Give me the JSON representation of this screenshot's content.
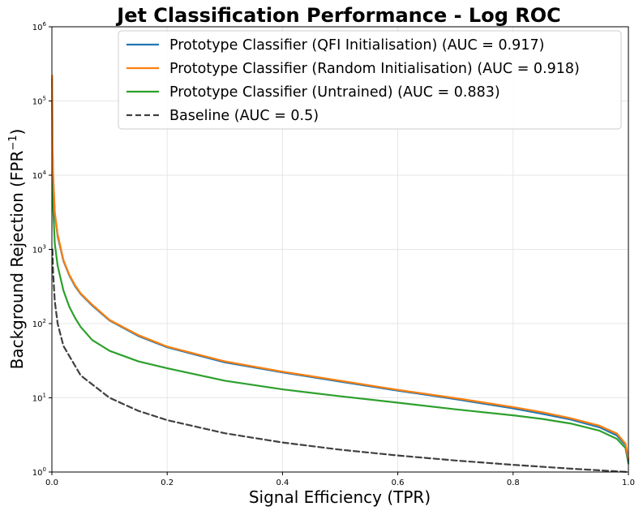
{
  "chart_data": {
    "type": "line",
    "title": "Jet Classification Performance - Log ROC",
    "xlabel": "Signal Efficiency (TPR)",
    "ylabel_base": "Background Rejection (FPR",
    "ylabel_sup": "−1",
    "ylabel_close": ")",
    "xlim": [
      0,
      1
    ],
    "ylim": [
      1,
      1000000
    ],
    "yscale": "log",
    "grid": true,
    "legend_position": "top-right",
    "x_ticks": [
      {
        "value": 0.0,
        "label": "0.0"
      },
      {
        "value": 0.2,
        "label": "0.2"
      },
      {
        "value": 0.4,
        "label": "0.4"
      },
      {
        "value": 0.6,
        "label": "0.6"
      },
      {
        "value": 0.8,
        "label": "0.8"
      },
      {
        "value": 1.0,
        "label": "1.0"
      }
    ],
    "y_ticks": [
      {
        "value": 1,
        "base": "10",
        "exp": "0"
      },
      {
        "value": 10,
        "base": "10",
        "exp": "1"
      },
      {
        "value": 100,
        "base": "10",
        "exp": "2"
      },
      {
        "value": 1000,
        "base": "10",
        "exp": "3"
      },
      {
        "value": 10000,
        "base": "10",
        "exp": "4"
      },
      {
        "value": 100000,
        "base": "10",
        "exp": "5"
      },
      {
        "value": 1000000,
        "base": "10",
        "exp": "6"
      }
    ],
    "series": [
      {
        "name": "Prototype Classifier (QFI Initialisation) (AUC = 0.917)",
        "color": "#1f77b4",
        "dash": "solid",
        "x": [
          0.0005,
          0.001,
          0.002,
          0.005,
          0.01,
          0.02,
          0.03,
          0.04,
          0.05,
          0.07,
          0.1,
          0.15,
          0.2,
          0.3,
          0.4,
          0.5,
          0.6,
          0.7,
          0.8,
          0.85,
          0.9,
          0.95,
          0.98,
          0.995,
          1.0
        ],
        "y": [
          200000,
          30000,
          10000,
          3000,
          1500,
          700,
          450,
          320,
          250,
          175,
          110,
          68,
          48,
          30,
          22,
          16.5,
          12.5,
          9.6,
          7.2,
          6.1,
          5.1,
          4.0,
          3.1,
          2.3,
          1.4
        ]
      },
      {
        "name": "Prototype Classifier (Random Initialisation) (AUC = 0.918)",
        "color": "#ff7f0e",
        "dash": "solid",
        "x": [
          0.0005,
          0.001,
          0.002,
          0.005,
          0.01,
          0.02,
          0.03,
          0.04,
          0.05,
          0.07,
          0.1,
          0.15,
          0.2,
          0.3,
          0.4,
          0.5,
          0.6,
          0.7,
          0.8,
          0.85,
          0.9,
          0.95,
          0.98,
          0.995,
          1.0
        ],
        "y": [
          220000,
          32000,
          11000,
          3200,
          1600,
          720,
          460,
          330,
          255,
          180,
          112,
          70,
          49,
          31,
          22.5,
          17,
          12.8,
          9.9,
          7.5,
          6.4,
          5.3,
          4.2,
          3.3,
          2.4,
          1.5
        ]
      },
      {
        "name": "Prototype Classifier (Untrained) (AUC = 0.883)",
        "color": "#2ca02c",
        "dash": "solid",
        "x": [
          0.0005,
          0.001,
          0.002,
          0.005,
          0.01,
          0.02,
          0.03,
          0.04,
          0.05,
          0.07,
          0.1,
          0.15,
          0.2,
          0.3,
          0.4,
          0.5,
          0.6,
          0.7,
          0.8,
          0.85,
          0.9,
          0.95,
          0.98,
          0.995,
          1.0
        ],
        "y": [
          100000,
          12000,
          4000,
          1200,
          600,
          280,
          170,
          120,
          90,
          60,
          43,
          31,
          25,
          17,
          13,
          10.5,
          8.6,
          7,
          5.8,
          5.2,
          4.5,
          3.6,
          2.8,
          2.1,
          1.3
        ]
      },
      {
        "name": "Baseline (AUC = 0.5)",
        "color": "#404040",
        "dash": "dashed",
        "x": [
          0.001,
          0.002,
          0.005,
          0.01,
          0.02,
          0.05,
          0.1,
          0.15,
          0.2,
          0.3,
          0.4,
          0.5,
          0.6,
          0.7,
          0.8,
          0.9,
          1.0
        ],
        "y": [
          1000,
          500,
          200,
          100,
          50,
          20,
          10,
          6.67,
          5,
          3.33,
          2.5,
          2,
          1.67,
          1.43,
          1.25,
          1.11,
          1.0
        ]
      }
    ]
  }
}
